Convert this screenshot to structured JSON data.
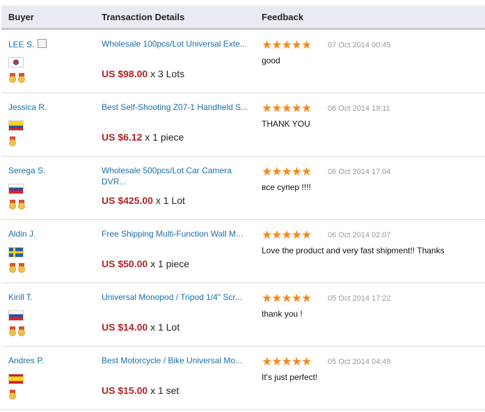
{
  "headers": {
    "buyer": "Buyer",
    "transaction": "Transaction Details",
    "feedback": "Feedback"
  },
  "colors": {
    "link": "#1a6ea8",
    "price": "#b0232a",
    "star": "#f5891e"
  },
  "rows": [
    {
      "buyer": "LEE S.",
      "flag": "south-korea",
      "medals": 2,
      "product": "Wholesale 100pcs/Lot Universal Exte...",
      "price": "US $98.00",
      "qty": "x 3 Lots",
      "rating": 5,
      "date": "07 Oct 2014 00:45",
      "feedback": "good"
    },
    {
      "buyer": "Jessica R.",
      "flag": "colombia",
      "medals": 1,
      "product": "Best Self-Shooting Z07-1 Handheld S...",
      "price": "US $6.12",
      "qty": "x 1 piece",
      "rating": 5,
      "date": "06 Oct 2014 19:11",
      "feedback": "THANK YOU"
    },
    {
      "buyer": "Serega S.",
      "flag": "russia",
      "medals": 2,
      "product": "Wholesale 500pcs/Lot Car Camera DVR...",
      "price": "US $425.00",
      "qty": "x 1 Lot",
      "rating": 5,
      "date": "06 Oct 2014 17:04",
      "feedback": "все супер !!!!"
    },
    {
      "buyer": "Aldin J.",
      "flag": "sweden",
      "medals": 2,
      "product": "Free Shipping Multi-Function Wall M...",
      "price": "US $50.00",
      "qty": "x 1 piece",
      "rating": 5,
      "date": "06 Oct 2014 02:07",
      "feedback": "Love the product and very fast shipment!! Thanks"
    },
    {
      "buyer": "Kirill T.",
      "flag": "russia",
      "medals": 2,
      "product": "Universal Monopod / Tripod 1/4\" Scr...",
      "price": "US $14.00",
      "qty": "x 1 Lot",
      "rating": 5,
      "date": "05 Oct 2014 17:22",
      "feedback": "thank you !"
    },
    {
      "buyer": "Andres P.",
      "flag": "spain",
      "medals": 1,
      "product": "Best Motorcycle / Bike Universal Mo...",
      "price": "US $15.00",
      "qty": "x 1 set",
      "rating": 5,
      "date": "05 Oct 2014 04:49",
      "feedback": "It's just perfect!"
    }
  ]
}
